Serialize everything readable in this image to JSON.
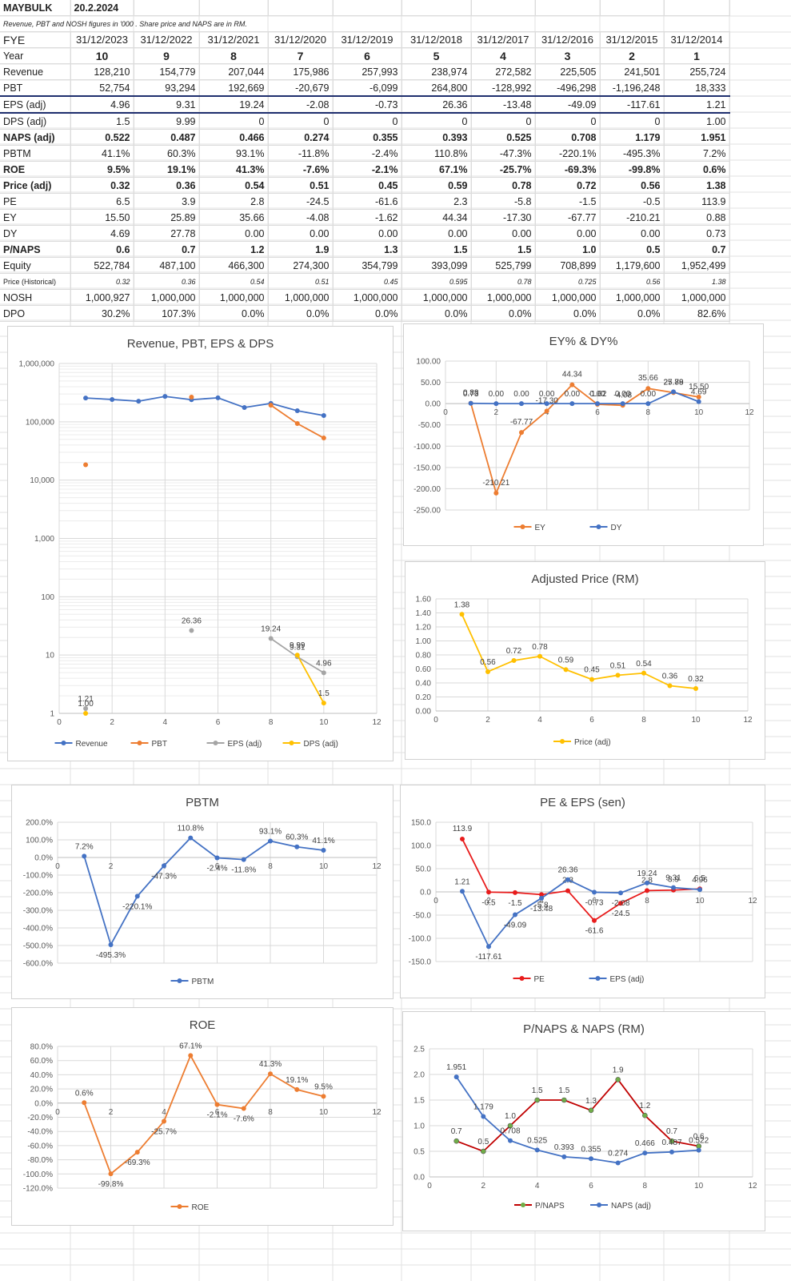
{
  "sheet": {
    "ticker": "MAYBULK",
    "date": "20.2.2024",
    "note": "Revenue, PBT and  NOSH  figures in '000  .  Share price  and NAPS are in  RM.",
    "fye_label": "FYE",
    "fye": [
      "31/12/2023",
      "31/12/2022",
      "31/12/2021",
      "31/12/2020",
      "31/12/2019",
      "31/12/2018",
      "31/12/2017",
      "31/12/2016",
      "31/12/2015",
      "31/12/2014"
    ],
    "rows": [
      {
        "label": "Year",
        "cls": "year",
        "values": [
          "10",
          "9",
          "8",
          "7",
          "6",
          "5",
          "4",
          "3",
          "2",
          "1"
        ]
      },
      {
        "label": "Revenue",
        "cls": "",
        "values": [
          "128,210",
          "154,779",
          "207,044",
          "175,986",
          "257,993",
          "238,974",
          "272,582",
          "225,505",
          "241,501",
          "255,724"
        ]
      },
      {
        "label": "PBT",
        "cls": "pbt",
        "values": [
          "52,754",
          "93,294",
          "192,669",
          "-20,679",
          "-6,099",
          "264,800",
          "-128,992",
          "-496,298",
          "-1,196,248",
          "18,333"
        ]
      },
      {
        "label": "EPS (adj)",
        "cls": "eps",
        "values": [
          "4.96",
          "9.31",
          "19.24",
          "-2.08",
          "-0.73",
          "26.36",
          "-13.48",
          "-49.09",
          "-117.61",
          "1.21"
        ]
      },
      {
        "label": "DPS (adj)",
        "cls": "",
        "values": [
          "1.5",
          "9.99",
          "0",
          "0",
          "0",
          "0",
          "0",
          "0",
          "0",
          "1.00"
        ]
      },
      {
        "label": "NAPS (adj)",
        "cls": "bold",
        "values": [
          "0.522",
          "0.487",
          "0.466",
          "0.274",
          "0.355",
          "0.393",
          "0.525",
          "0.708",
          "1.179",
          "1.951"
        ]
      },
      {
        "label": "PBTM",
        "cls": "",
        "values": [
          "41.1%",
          "60.3%",
          "93.1%",
          "-11.8%",
          "-2.4%",
          "110.8%",
          "-47.3%",
          "-220.1%",
          "-495.3%",
          "7.2%"
        ]
      },
      {
        "label": "ROE",
        "cls": "bold",
        "values": [
          "9.5%",
          "19.1%",
          "41.3%",
          "-7.6%",
          "-2.1%",
          "67.1%",
          "-25.7%",
          "-69.3%",
          "-99.8%",
          "0.6%"
        ]
      },
      {
        "label": "Price (adj)",
        "cls": "bold",
        "values": [
          "0.32",
          "0.36",
          "0.54",
          "0.51",
          "0.45",
          "0.59",
          "0.78",
          "0.72",
          "0.56",
          "1.38"
        ]
      },
      {
        "label": "PE",
        "cls": "",
        "values": [
          "6.5",
          "3.9",
          "2.8",
          "-24.5",
          "-61.6",
          "2.3",
          "-5.8",
          "-1.5",
          "-0.5",
          "113.9"
        ]
      },
      {
        "label": "EY",
        "cls": "",
        "values": [
          "15.50",
          "25.89",
          "35.66",
          "-4.08",
          "-1.62",
          "44.34",
          "-17.30",
          "-67.77",
          "-210.21",
          "0.88"
        ]
      },
      {
        "label": "DY",
        "cls": "",
        "values": [
          "4.69",
          "27.78",
          "0.00",
          "0.00",
          "0.00",
          "0.00",
          "0.00",
          "0.00",
          "0.00",
          "0.73"
        ]
      },
      {
        "label": "P/NAPS",
        "cls": "bold",
        "values": [
          "0.6",
          "0.7",
          "1.2",
          "1.9",
          "1.3",
          "1.5",
          "1.5",
          "1.0",
          "0.5",
          "0.7"
        ]
      },
      {
        "label": "Equity",
        "cls": "",
        "values": [
          "522,784",
          "487,100",
          "466,300",
          "274,300",
          "354,799",
          "393,099",
          "525,799",
          "708,899",
          "1,179,600",
          "1,952,499"
        ]
      },
      {
        "label": "Price (Historical)",
        "cls": "small",
        "values": [
          "0.32",
          "0.36",
          "0.54",
          "0.51",
          "0.45",
          "0.595",
          "0.78",
          "0.725",
          "0.56",
          "1.38"
        ]
      },
      {
        "label": "NOSH",
        "cls": "",
        "values": [
          "1,000,927",
          "1,000,000",
          "1,000,000",
          "1,000,000",
          "1,000,000",
          "1,000,000",
          "1,000,000",
          "1,000,000",
          "1,000,000",
          "1,000,000"
        ]
      },
      {
        "label": "DPO",
        "cls": "",
        "values": [
          "30.2%",
          "107.3%",
          "0.0%",
          "0.0%",
          "0.0%",
          "0.0%",
          "0.0%",
          "0.0%",
          "0.0%",
          "82.6%"
        ]
      }
    ]
  },
  "chart_data": [
    {
      "id": "c1",
      "type": "scatter",
      "title": "Revenue, PBT, EPS & DPS",
      "yscale": "log",
      "xlim": [
        0,
        12
      ],
      "xticks": [
        "0",
        "2",
        "4",
        "6",
        "8",
        "10",
        "12"
      ],
      "yticks": [
        1,
        10,
        100,
        1000,
        10000,
        100000,
        1000000
      ],
      "ytick_labels": [
        "1",
        "10",
        "100",
        "1,000",
        "10,000",
        "100,000",
        "1,000,000"
      ],
      "series": [
        {
          "name": "Revenue",
          "color": "#4472c4",
          "x": [
            1,
            2,
            3,
            4,
            5,
            6,
            7,
            8,
            9,
            10
          ],
          "values": [
            255724,
            241501,
            225505,
            272582,
            238974,
            257993,
            175986,
            207044,
            154779,
            128210
          ],
          "labels": []
        },
        {
          "name": "PBT",
          "color": "#ed7d31",
          "x": [
            1,
            5,
            8,
            9,
            10
          ],
          "values": [
            18333,
            264800,
            192669,
            93294,
            52754
          ],
          "labels": []
        },
        {
          "name": "EPS (adj)",
          "color": "#a5a5a5",
          "x": [
            1,
            5,
            8,
            9,
            10
          ],
          "values": [
            1.21,
            26.36,
            19.24,
            9.31,
            4.96
          ],
          "labels": [
            "1.21",
            "26.36",
            "19.24",
            "9.31",
            "4.96"
          ]
        },
        {
          "name": "DPS (adj)",
          "color": "#ffc000",
          "x": [
            1,
            9,
            10
          ],
          "values": [
            1.0,
            9.99,
            1.5
          ],
          "labels": [
            "1.00",
            "9.99",
            "1.5"
          ]
        }
      ]
    },
    {
      "id": "c2",
      "type": "line",
      "title": "EY% & DY%",
      "xlim": [
        0,
        12
      ],
      "xticks": [
        "0",
        "2",
        "4",
        "6",
        "8",
        "10",
        "12"
      ],
      "ylim": [
        -250,
        100
      ],
      "yticks": [
        100,
        50,
        0,
        -50,
        -100,
        -150,
        -200,
        -250
      ],
      "ytick_labels": [
        "100.00",
        "50.00",
        "0.00",
        "-50.00",
        "-100.00",
        "-150.00",
        "-200.00",
        "-250.00"
      ],
      "series": [
        {
          "name": "EY",
          "color": "#ed7d31",
          "x": [
            1,
            2,
            3,
            4,
            5,
            6,
            7,
            8,
            9,
            10
          ],
          "values": [
            0.88,
            -210.21,
            -67.77,
            -17.3,
            44.34,
            -1.62,
            -4.08,
            35.66,
            25.89,
            15.5
          ],
          "labels": [
            "0.88",
            "-210.21",
            "-67.77",
            "-17.30",
            "44.34",
            "-1.62",
            "-4.08",
            "35.66",
            "25.89",
            "15.50"
          ]
        },
        {
          "name": "DY",
          "color": "#4472c4",
          "x": [
            1,
            2,
            3,
            4,
            5,
            6,
            7,
            8,
            9,
            10
          ],
          "values": [
            0.73,
            0,
            0,
            0,
            0,
            0,
            0,
            0,
            27.78,
            4.69
          ],
          "labels": [
            "0.73",
            "0.00",
            "0.00",
            "0.00",
            "0.00",
            "0.00",
            "0.00",
            "0.00",
            "27.78",
            "4.69"
          ]
        }
      ]
    },
    {
      "id": "c3",
      "type": "line",
      "title": "Adjusted Price (RM)",
      "xlim": [
        0,
        12
      ],
      "xticks": [
        "0",
        "2",
        "4",
        "6",
        "8",
        "10",
        "12"
      ],
      "ylim": [
        0,
        1.6
      ],
      "yticks": [
        1.6,
        1.4,
        1.2,
        1.0,
        0.8,
        0.6,
        0.4,
        0.2,
        0
      ],
      "ytick_labels": [
        "1.60",
        "1.40",
        "1.20",
        "1.00",
        "0.80",
        "0.60",
        "0.40",
        "0.20",
        "0.00"
      ],
      "series": [
        {
          "name": "Price (adj)",
          "color": "#ffc000",
          "x": [
            1,
            2,
            3,
            4,
            5,
            6,
            7,
            8,
            9,
            10
          ],
          "values": [
            1.38,
            0.56,
            0.72,
            0.78,
            0.59,
            0.45,
            0.51,
            0.54,
            0.36,
            0.32
          ],
          "labels": [
            "1.38",
            "0.56",
            "0.72",
            "0.78",
            "0.59",
            "0.45",
            "0.51",
            "0.54",
            "0.36",
            "0.32"
          ]
        }
      ]
    },
    {
      "id": "c4",
      "type": "line",
      "title": "PBTM",
      "xlim": [
        0,
        12
      ],
      "xticks": [
        "0",
        "2",
        "4",
        "6",
        "8",
        "10",
        "12"
      ],
      "ylim": [
        -600,
        200
      ],
      "yticks": [
        200,
        100,
        0,
        -100,
        -200,
        -300,
        -400,
        -500,
        -600
      ],
      "ytick_labels": [
        "200.0%",
        "100.0%",
        "0.0%",
        "-100.0%",
        "-200.0%",
        "-300.0%",
        "-400.0%",
        "-500.0%",
        "-600.0%"
      ],
      "series": [
        {
          "name": "PBTM",
          "color": "#4472c4",
          "x": [
            1,
            2,
            3,
            4,
            5,
            6,
            7,
            8,
            9,
            10
          ],
          "values": [
            7.2,
            -495.3,
            -220.1,
            -47.3,
            110.8,
            -2.4,
            -11.8,
            93.1,
            60.3,
            41.1
          ],
          "labels": [
            "7.2%",
            "-495.3%",
            "-220.1%",
            "-47.3%",
            "110.8%",
            "-2.4%",
            "-11.8%",
            "93.1%",
            "60.3%",
            "41.1%"
          ]
        }
      ]
    },
    {
      "id": "c5",
      "type": "line",
      "title": "PE & EPS (sen)",
      "xlim": [
        0,
        12
      ],
      "xticks": [
        "0",
        "2",
        "4",
        "6",
        "8",
        "10",
        "12"
      ],
      "ylim": [
        -150,
        150
      ],
      "yticks": [
        150,
        100,
        50,
        0,
        -50,
        -100,
        -150
      ],
      "ytick_labels": [
        "150.0",
        "100.0",
        "50.0",
        "0.0",
        "-50.0",
        "-100.0",
        "-150.0"
      ],
      "series": [
        {
          "name": "PE",
          "color": "#e81c1c",
          "x": [
            1,
            2,
            3,
            4,
            5,
            6,
            7,
            8,
            9,
            10
          ],
          "values": [
            113.9,
            -0.5,
            -1.5,
            -5.8,
            2.3,
            -61.6,
            -24.5,
            2.8,
            3.9,
            6.5
          ],
          "labels": [
            "113.9",
            "-0.5",
            "-1.5",
            "-5.8",
            "2.3",
            "-61.6",
            "-24.5",
            "2.8",
            "3.9",
            "6.5"
          ]
        },
        {
          "name": "EPS (adj)",
          "color": "#4472c4",
          "x": [
            1,
            2,
            3,
            4,
            5,
            6,
            7,
            8,
            9,
            10
          ],
          "values": [
            1.21,
            -117.61,
            -49.09,
            -13.48,
            26.36,
            -0.73,
            -2.08,
            19.24,
            9.31,
            4.96
          ],
          "labels": [
            "1.21",
            "-117.61",
            "-49.09",
            "-13.48",
            "26.36",
            "-0.73",
            "-2.08",
            "19.24",
            "9.31",
            "4.96"
          ]
        }
      ]
    },
    {
      "id": "c6",
      "type": "line",
      "title": "ROE",
      "xlim": [
        0,
        12
      ],
      "xticks": [
        "0",
        "2",
        "4",
        "6",
        "8",
        "10",
        "12"
      ],
      "ylim": [
        -120,
        80
      ],
      "yticks": [
        80,
        60,
        40,
        20,
        0,
        -20,
        -40,
        -60,
        -80,
        -100,
        -120
      ],
      "ytick_labels": [
        "80.0%",
        "60.0%",
        "40.0%",
        "20.0%",
        "0.0%",
        "-20.0%",
        "-40.0%",
        "-60.0%",
        "-80.0%",
        "-100.0%",
        "-120.0%"
      ],
      "series": [
        {
          "name": "ROE",
          "color": "#ed7d31",
          "x": [
            1,
            2,
            3,
            4,
            5,
            6,
            7,
            8,
            9,
            10
          ],
          "values": [
            0.6,
            -99.8,
            -69.3,
            -25.7,
            67.1,
            -2.1,
            -7.6,
            41.3,
            19.1,
            9.5
          ],
          "labels": [
            "0.6%",
            "-99.8%",
            "-69.3%",
            "-25.7%",
            "67.1%",
            "-2.1%",
            "-7.6%",
            "41.3%",
            "19.1%",
            "9.5%"
          ]
        }
      ]
    },
    {
      "id": "c7",
      "type": "line",
      "title": "P/NAPS & NAPS (RM)",
      "xlim": [
        0,
        12
      ],
      "xticks": [
        "0",
        "2",
        "4",
        "6",
        "8",
        "10",
        "12"
      ],
      "ylim": [
        0,
        2.5
      ],
      "yticks": [
        2.5,
        2.0,
        1.5,
        1.0,
        0.5,
        0
      ],
      "ytick_labels": [
        "2.5",
        "2.0",
        "1.5",
        "1.0",
        "0.5",
        "0.0"
      ],
      "series": [
        {
          "name": "P/NAPS",
          "color": "#c00000",
          "marker": "#70ad47",
          "x": [
            1,
            2,
            3,
            4,
            5,
            6,
            7,
            8,
            9,
            10
          ],
          "values": [
            0.7,
            0.5,
            1.0,
            1.5,
            1.5,
            1.3,
            1.9,
            1.2,
            0.7,
            0.6
          ],
          "labels": [
            "0.7",
            "0.5",
            "1.0",
            "1.5",
            "1.5",
            "1.3",
            "1.9",
            "1.2",
            "0.7",
            "0.6"
          ]
        },
        {
          "name": "NAPS (adj)",
          "color": "#4472c4",
          "x": [
            1,
            2,
            3,
            4,
            5,
            6,
            7,
            8,
            9,
            10
          ],
          "values": [
            1.951,
            1.179,
            0.708,
            0.525,
            0.393,
            0.355,
            0.274,
            0.466,
            0.487,
            0.522
          ],
          "labels": [
            "1.951",
            "1.179",
            "0.708",
            "0.525",
            "0.393",
            "0.355",
            "0.274",
            "0.466",
            "0.487",
            "0.522"
          ]
        }
      ]
    }
  ]
}
